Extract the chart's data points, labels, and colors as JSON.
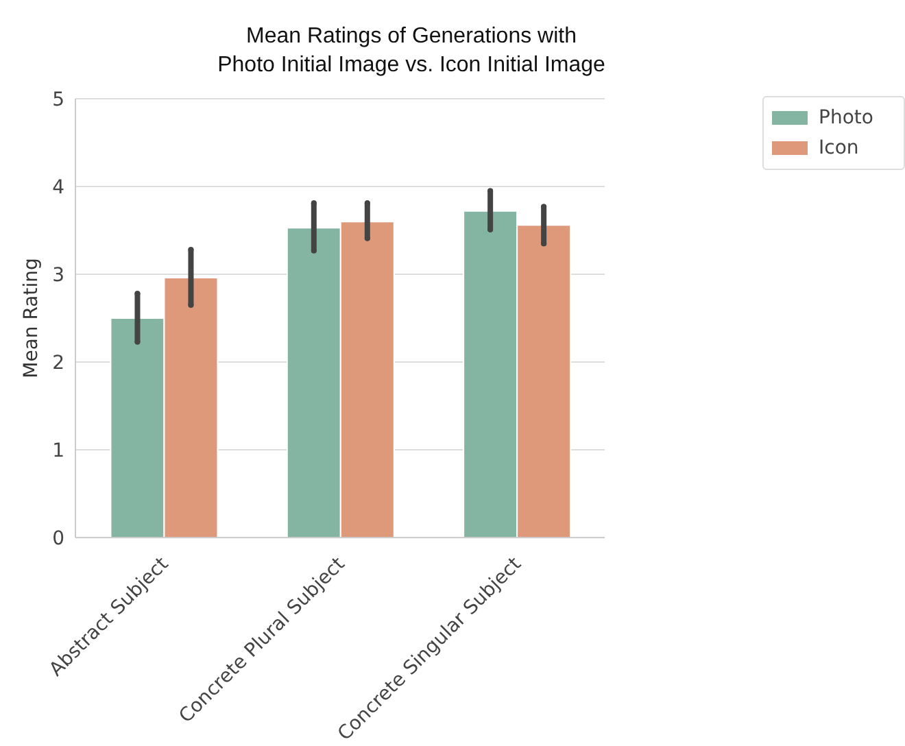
{
  "chart_data": {
    "type": "bar",
    "title": "Mean Ratings of Generations with\nPhoto Initial Image vs. Icon Initial Image",
    "ylabel": "Mean Rating",
    "categories": [
      "Abstract Subject",
      "Concrete Plural Subject",
      "Concrete Singular Subject"
    ],
    "series": [
      {
        "name": "Photo",
        "color": "#84b5a2",
        "values": [
          2.5,
          3.53,
          3.72
        ],
        "errors": [
          [
            2.23,
            2.78
          ],
          [
            3.27,
            3.81
          ],
          [
            3.51,
            3.95
          ]
        ]
      },
      {
        "name": "Icon",
        "color": "#de997a",
        "values": [
          2.96,
          3.6,
          3.56
        ],
        "errors": [
          [
            2.65,
            3.28
          ],
          [
            3.41,
            3.81
          ],
          [
            3.35,
            3.77
          ]
        ]
      }
    ],
    "ylim": [
      0,
      5
    ],
    "yticks": [
      0,
      1,
      2,
      3,
      4,
      5
    ],
    "grid": "y",
    "legend": "top right"
  }
}
